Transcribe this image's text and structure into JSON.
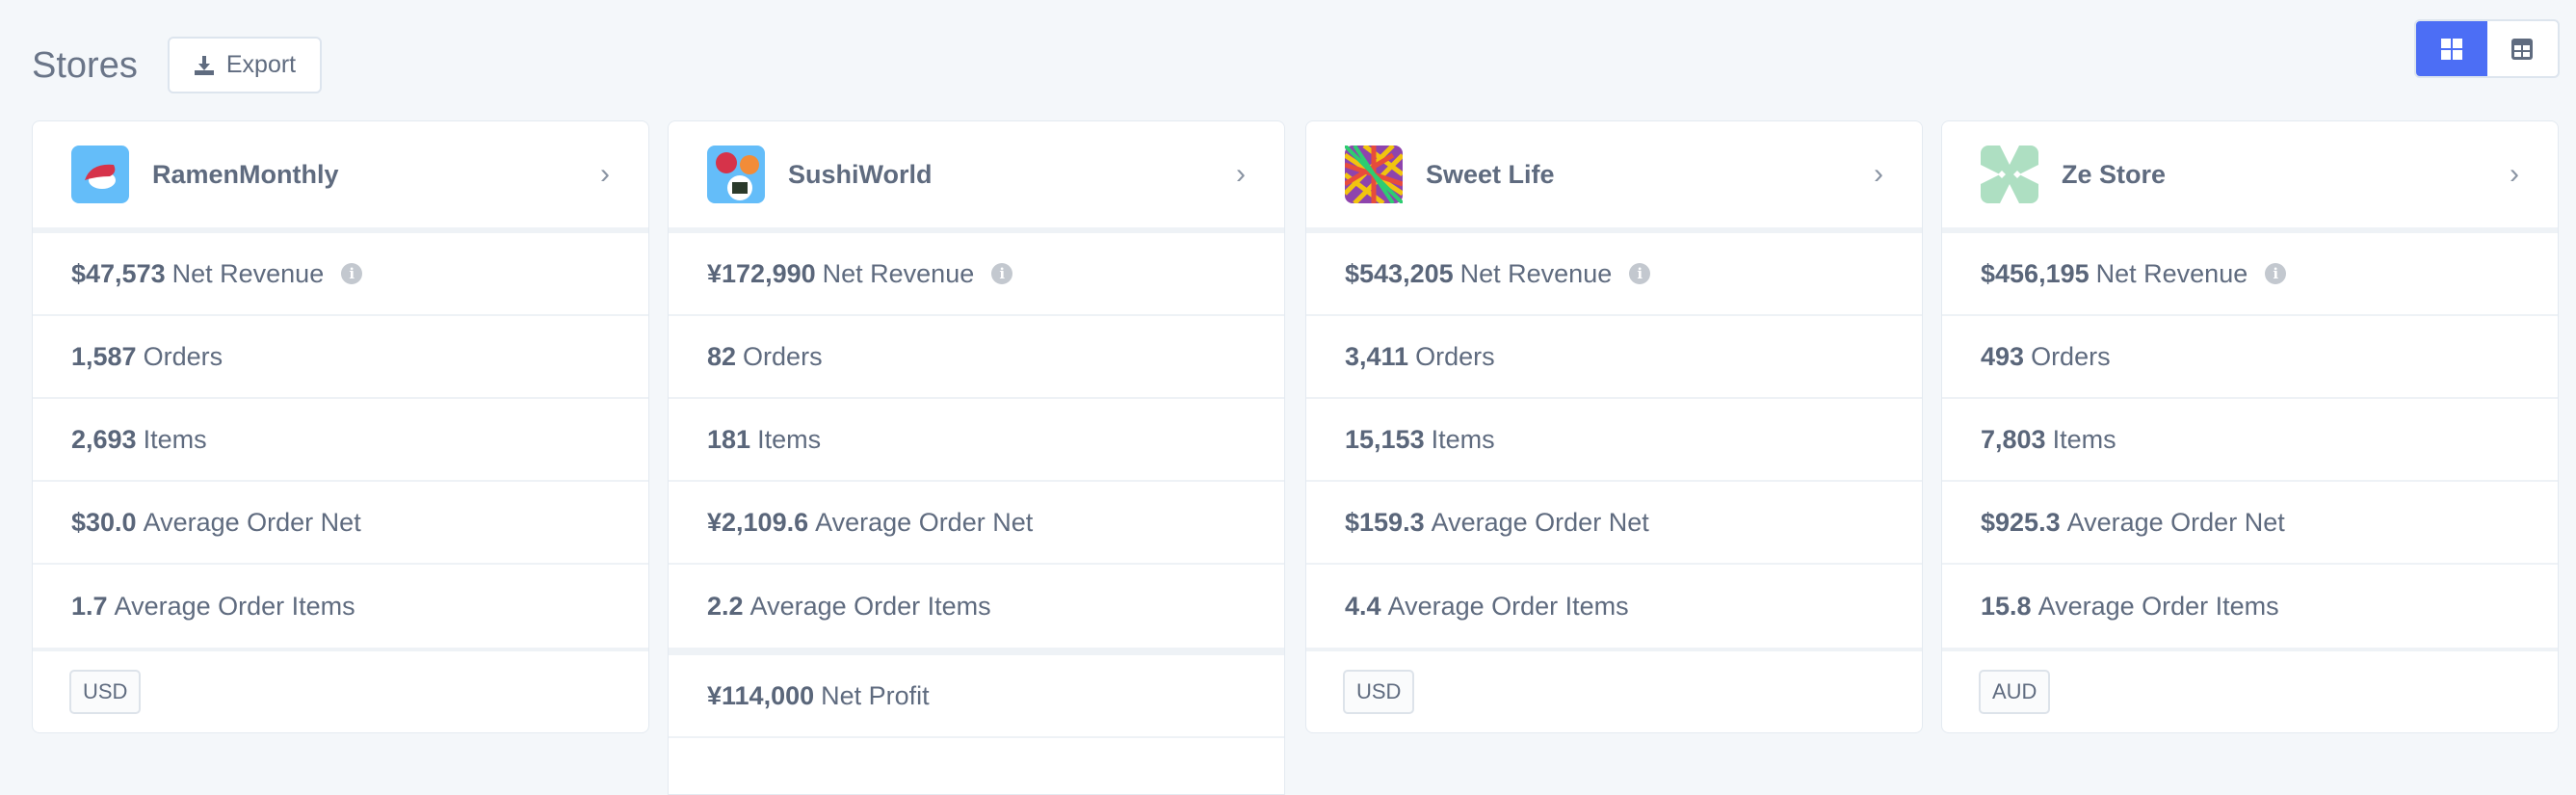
{
  "header": {
    "title": "Stores",
    "export_label": "Export",
    "views": [
      {
        "icon": "grid-icon",
        "active": true
      },
      {
        "icon": "table-icon",
        "active": false
      }
    ],
    "accent": "#4c6ef5"
  },
  "stores": [
    {
      "name": "RamenMonthly",
      "logo_color": "#64bdf9",
      "net_revenue": "$47,573",
      "orders": "1,587",
      "items": "2,693",
      "avg_order_net": "$30.0",
      "avg_order_items": "1.7",
      "currency": "USD"
    },
    {
      "name": "SushiWorld",
      "logo_color": "#64bdf9",
      "net_revenue": "¥172,990",
      "orders": "82",
      "items": "181",
      "avg_order_net": "¥2,109.6",
      "avg_order_items": "2.2",
      "net_profit": "¥114,000"
    },
    {
      "name": "Sweet Life",
      "logo_color": "#c0392b",
      "net_revenue": "$543,205",
      "orders": "3,411",
      "items": "15,153",
      "avg_order_net": "$159.3",
      "avg_order_items": "4.4",
      "currency": "USD"
    },
    {
      "name": "Ze Store",
      "logo_color": "#aedfc2",
      "net_revenue": "$456,195",
      "orders": "493",
      "items": "7,803",
      "avg_order_net": "$925.3",
      "avg_order_items": "15.8",
      "currency": "AUD"
    }
  ],
  "labels": {
    "net_revenue": "Net Revenue",
    "orders": "Orders",
    "items": "Items",
    "avg_order_net": "Average Order Net",
    "avg_order_items": "Average Order Items",
    "net_profit": "Net Profit"
  }
}
